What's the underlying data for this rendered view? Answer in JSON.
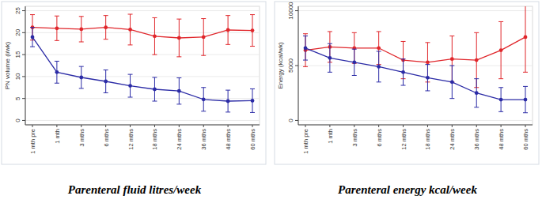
{
  "chart_data": [
    {
      "type": "line",
      "title": "Parenteral fluid litres/week",
      "y_label": "PN volume (l/wk)",
      "categories": [
        "1 mth pre",
        "1 mth",
        "3 mths",
        "6 mths",
        "12 mths",
        "18 mths",
        "24 mths",
        "36 mths",
        "48 mths",
        "60 mths"
      ],
      "series": [
        {
          "color": "#e0262b",
          "values": [
            21.2,
            21.0,
            20.8,
            21.2,
            20.7,
            19.2,
            18.8,
            19.0,
            20.6,
            20.5
          ],
          "errors": [
            2.9,
            2.8,
            2.9,
            2.7,
            3.5,
            4.2,
            4.3,
            4.2,
            3.3,
            3.6
          ]
        },
        {
          "color": "#2b2ba6",
          "values": [
            19.0,
            11.0,
            9.8,
            8.9,
            7.9,
            7.1,
            6.7,
            4.8,
            4.4,
            4.5
          ],
          "errors": [
            2.2,
            2.5,
            2.5,
            2.6,
            2.6,
            2.7,
            3.0,
            2.7,
            2.5,
            2.7
          ]
        }
      ],
      "ylim": [
        -1,
        26
      ],
      "yticks": [
        0,
        5,
        10,
        15,
        20,
        25
      ],
      "grid": true,
      "marker": "circle"
    },
    {
      "type": "line",
      "title": "Parenteral energy kcal/week",
      "y_label": "Energy (kcal/wk)",
      "categories": [
        "1 mth pre",
        "1 mth",
        "3 mths",
        "6 mths",
        "12 mths",
        "18 mths",
        "24 mths",
        "36 mths",
        "48 mths",
        "60 mths"
      ],
      "series": [
        {
          "color": "#e0262b",
          "values": [
            6400,
            6700,
            6600,
            6600,
            5500,
            5300,
            5600,
            5500,
            6400,
            7600
          ],
          "errors": [
            1500,
            1400,
            1400,
            1500,
            1700,
            1800,
            2100,
            2500,
            2600,
            3200
          ]
        },
        {
          "color": "#2b2ba6",
          "values": [
            6600,
            5700,
            5300,
            4900,
            4400,
            3900,
            3500,
            2500,
            1900,
            1900
          ],
          "errors": [
            1100,
            1300,
            1200,
            1400,
            1200,
            1200,
            1500,
            1300,
            1100,
            1200
          ]
        }
      ],
      "ylim": [
        -400,
        10400
      ],
      "yticks": [
        0,
        5000,
        10000
      ],
      "grid": true,
      "marker": "circle"
    }
  ]
}
